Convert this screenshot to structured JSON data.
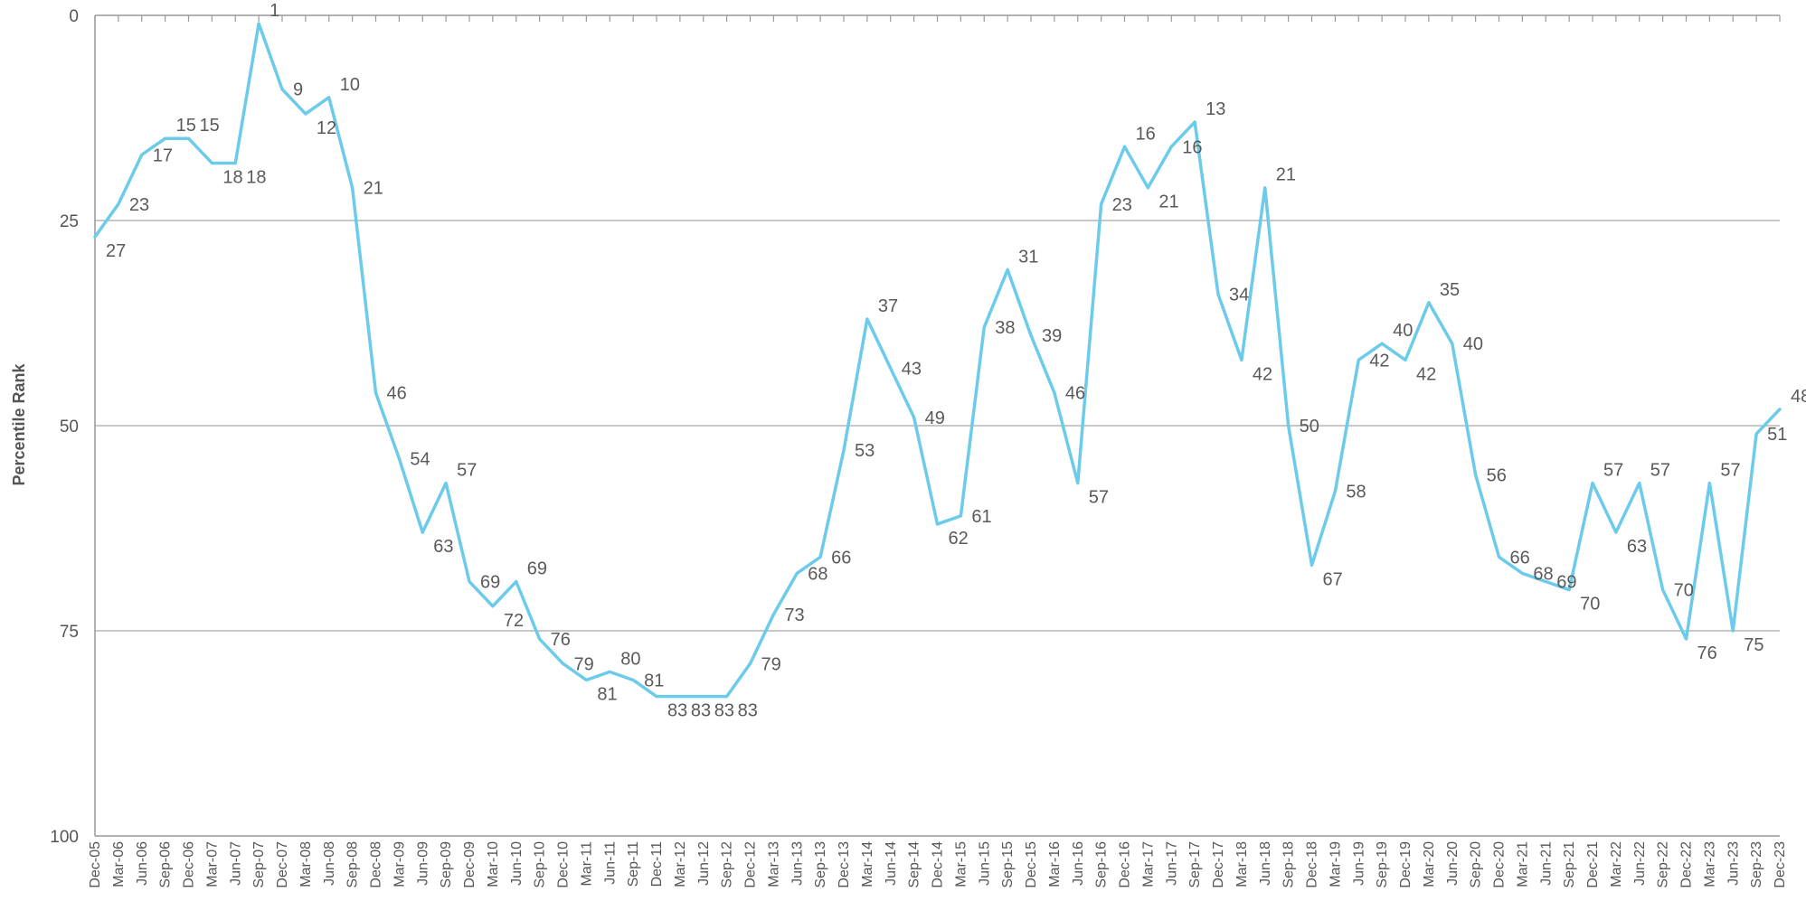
{
  "chart_data": {
    "type": "line",
    "title": "",
    "xlabel": "",
    "ylabel": "Percentile Rank",
    "ylim": [
      0,
      100
    ],
    "y_inverted": true,
    "y_ticks": [
      "0",
      "25",
      "50",
      "75",
      "100"
    ],
    "grid": true,
    "legend": "none",
    "line_color": "#6ccbeb",
    "categories": [
      "Dec-05",
      "Mar-06",
      "Jun-06",
      "Sep-06",
      "Dec-06",
      "Mar-07",
      "Jun-07",
      "Sep-07",
      "Dec-07",
      "Mar-08",
      "Jun-08",
      "Sep-08",
      "Dec-08",
      "Mar-09",
      "Jun-09",
      "Sep-09",
      "Dec-09",
      "Mar-10",
      "Jun-10",
      "Sep-10",
      "Dec-10",
      "Mar-11",
      "Jun-11",
      "Sep-11",
      "Dec-11",
      "Mar-12",
      "Jun-12",
      "Sep-12",
      "Dec-12",
      "Mar-13",
      "Jun-13",
      "Sep-13",
      "Dec-13",
      "Mar-14",
      "Jun-14",
      "Sep-14",
      "Dec-14",
      "Mar-15",
      "Jun-15",
      "Sep-15",
      "Dec-15",
      "Mar-16",
      "Jun-16",
      "Sep-16",
      "Dec-16",
      "Mar-17",
      "Jun-17",
      "Sep-17",
      "Dec-17",
      "Mar-18",
      "Jun-18",
      "Sep-18",
      "Dec-18",
      "Mar-19",
      "Jun-19",
      "Sep-19",
      "Dec-19",
      "Mar-20",
      "Jun-20",
      "Sep-20",
      "Dec-20",
      "Mar-21",
      "Jun-21",
      "Sep-21",
      "Dec-21",
      "Mar-22",
      "Jun-22",
      "Sep-22",
      "Dec-22",
      "Mar-23",
      "Jun-23",
      "Sep-23",
      "Dec-23"
    ],
    "values": [
      27,
      23,
      17,
      15,
      15,
      18,
      18,
      1,
      9,
      12,
      10,
      21,
      46,
      54,
      63,
      57,
      69,
      72,
      69,
      76,
      79,
      81,
      80,
      81,
      83,
      83,
      83,
      83,
      79,
      73,
      68,
      66,
      53,
      37,
      43,
      49,
      62,
      61,
      38,
      31,
      39,
      46,
      57,
      23,
      16,
      21,
      16,
      13,
      34,
      42,
      21,
      50,
      67,
      58,
      42,
      40,
      42,
      35,
      40,
      56,
      66,
      68,
      69,
      70,
      57,
      63,
      57,
      70,
      76,
      57,
      75,
      51,
      48
    ],
    "data_labels": [
      "27",
      "23",
      "17",
      "15",
      "15",
      "18",
      "18",
      "1",
      "9",
      "12",
      "10",
      "21",
      "46",
      "54",
      "63",
      "57",
      "69",
      "72",
      "69",
      "76",
      "79",
      "81",
      "80",
      "81",
      "83",
      "83",
      "83",
      "83",
      "79",
      "73",
      "68",
      "66",
      "53",
      "37",
      "43",
      "49",
      "62",
      "61",
      "38",
      "31",
      "39",
      "46",
      "57",
      "23",
      "16",
      "21",
      "16",
      "13",
      "34",
      "42",
      "21",
      "50",
      "67",
      "58",
      "42",
      "40",
      "42",
      "35",
      "40",
      "56",
      "66",
      "68",
      "69",
      "70",
      "57",
      "63",
      "57",
      "70",
      "76",
      "57",
      "75",
      "51",
      "48"
    ]
  }
}
